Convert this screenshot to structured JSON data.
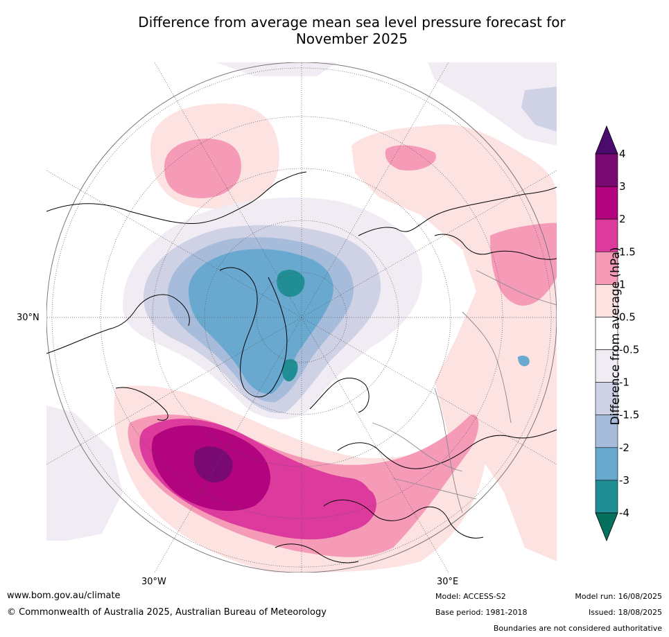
{
  "title_line1": "Difference from average mean sea level pressure forecast for",
  "title_line2": "November 2025",
  "map": {
    "projection": "north polar orthographic",
    "lon_labels": [
      "30°W",
      "30°E"
    ],
    "lat_labels": [
      "30°N"
    ]
  },
  "colorbar": {
    "label": "Difference from average (hPa)",
    "ticks": [
      "4",
      "3",
      "2",
      "1.5",
      "1",
      "0.5",
      "-0.5",
      "-1",
      "-1.5",
      "-2",
      "-3",
      "-4"
    ],
    "colors": [
      "#4b0a6e",
      "#7a0a73",
      "#b2047e",
      "#dc3a9c",
      "#f59bb7",
      "#fde2e2",
      "#ffffff",
      "#f1ecf4",
      "#cfd1e5",
      "#a7bcdb",
      "#69a9d0",
      "#208f95",
      "#06705e"
    ]
  },
  "footer": {
    "url": "www.bom.gov.au/climate",
    "copyright": "© Commonwealth of Australia 2025, Australian Bureau of Meteorology",
    "model": "Model: ACCESS-S2",
    "base_period": "Base period: 1981-2018",
    "model_run": "Model run: 16/08/2025",
    "issued": "Issued: 18/08/2025",
    "disclaimer": "Boundaries are not considered authoritative"
  }
}
